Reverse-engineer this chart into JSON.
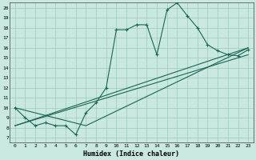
{
  "xlabel": "Humidex (Indice chaleur)",
  "xlim": [
    -0.5,
    23.5
  ],
  "ylim": [
    6.5,
    20.5
  ],
  "xticks": [
    0,
    1,
    2,
    3,
    4,
    5,
    6,
    7,
    8,
    9,
    10,
    11,
    12,
    13,
    14,
    15,
    16,
    17,
    18,
    19,
    20,
    21,
    22,
    23
  ],
  "yticks": [
    7,
    8,
    9,
    10,
    11,
    12,
    13,
    14,
    15,
    16,
    17,
    18,
    19,
    20
  ],
  "bg_color": "#c8e8e0",
  "grid_color": "#a0c8bc",
  "line_color": "#1a6655",
  "lines": [
    {
      "x": [
        0,
        1,
        2,
        3,
        4,
        5,
        6,
        7,
        8,
        9,
        10,
        11,
        12,
        13,
        14,
        15,
        16,
        17,
        18,
        19,
        20,
        21,
        22,
        23
      ],
      "y": [
        10,
        9,
        8.2,
        8.5,
        8.2,
        8.2,
        7.3,
        9.5,
        10.5,
        12.0,
        17.8,
        17.8,
        18.3,
        18.3,
        15.3,
        19.8,
        20.5,
        19.2,
        18.0,
        16.3,
        15.7,
        15.3,
        15.2,
        15.8
      ]
    },
    {
      "x": [
        0,
        23
      ],
      "y": [
        8.2,
        15.3
      ]
    },
    {
      "x": [
        0,
        23
      ],
      "y": [
        8.2,
        16.0
      ]
    },
    {
      "x": [
        0,
        7,
        23
      ],
      "y": [
        10,
        8.2,
        16.0
      ]
    }
  ]
}
